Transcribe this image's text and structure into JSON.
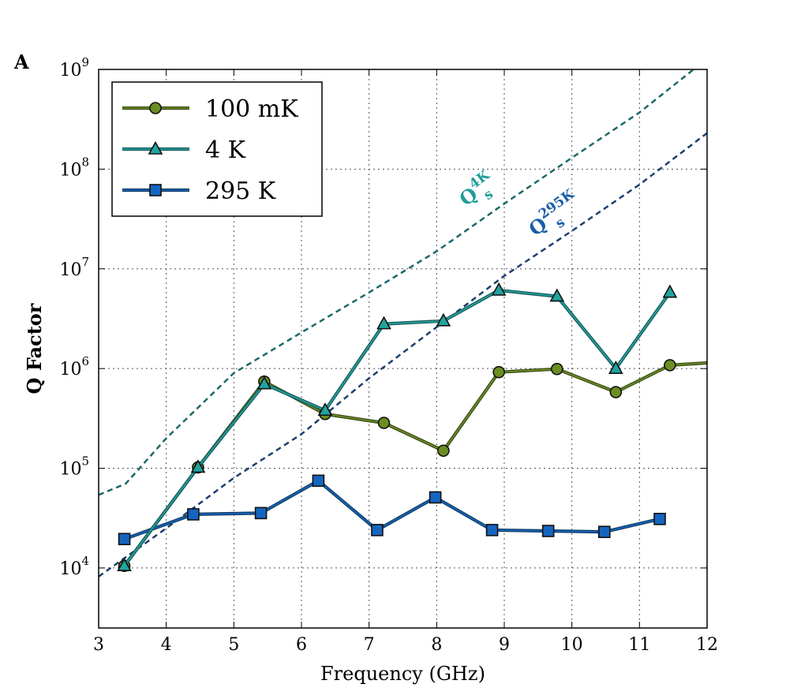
{
  "chart_data": {
    "type": "line",
    "panel_label": "A",
    "xlabel": "Frequency (GHz)",
    "ylabel": "Q Factor",
    "xlim": [
      3,
      12
    ],
    "ylim": [
      2500,
      1000000000
    ],
    "yscale": "log",
    "grid": true,
    "legend_placement": "top-left",
    "x_ticks": [
      3,
      4,
      5,
      6,
      7,
      8,
      9,
      10,
      11,
      12
    ],
    "y_ticks": [
      {
        "value": 10000,
        "base": "10",
        "exp": "4"
      },
      {
        "value": 100000,
        "base": "10",
        "exp": "5"
      },
      {
        "value": 1000000,
        "base": "10",
        "exp": "6"
      },
      {
        "value": 10000000,
        "base": "10",
        "exp": "7"
      },
      {
        "value": 100000000,
        "base": "10",
        "exp": "8"
      },
      {
        "value": 1000000000,
        "base": "10",
        "exp": "9"
      }
    ],
    "series": [
      {
        "name": "100 mK",
        "marker": "circle",
        "line_color": "#3d4f1a",
        "fill_color": "#6b8e23",
        "x": [
          3.38,
          4.47,
          5.45,
          6.35,
          7.22,
          8.1,
          8.92,
          9.78,
          10.65,
          11.45,
          12.0
        ],
        "y": [
          10500,
          102000,
          740000,
          350000,
          285000,
          150000,
          920000,
          990000,
          580000,
          1080000,
          1140000
        ]
      },
      {
        "name": "4 K",
        "marker": "triangle",
        "line_color": "#1b5c5c",
        "fill_color": "#20a4a0",
        "x": [
          3.38,
          4.47,
          5.45,
          6.35,
          7.22,
          8.1,
          8.92,
          9.78,
          10.65,
          11.45
        ],
        "y": [
          10500,
          102000,
          700000,
          380000,
          2800000,
          3000000,
          6100000,
          5300000,
          1000000,
          5800000
        ]
      },
      {
        "name": "295 K",
        "marker": "square",
        "line_color": "#123d66",
        "fill_color": "#1565c0",
        "x": [
          3.38,
          4.4,
          5.4,
          6.25,
          7.12,
          7.98,
          8.82,
          9.65,
          10.48,
          11.3
        ],
        "y": [
          19500,
          34500,
          35500,
          75000,
          24000,
          51000,
          24000,
          23500,
          23000,
          31000
        ]
      }
    ],
    "curves": [
      {
        "label": "Q",
        "sub": "s",
        "sup": "4K",
        "color": "#1f9e99",
        "line_color": "#1d6868",
        "x": [
          3.0,
          3.4,
          4.0,
          5.0,
          6.0,
          7.0,
          8.0,
          9.0,
          10.0,
          11.0,
          11.8
        ],
        "y": [
          54000,
          70000,
          200000,
          900000,
          2300000,
          5800000,
          15000000,
          45000000,
          130000000,
          370000000,
          1000000000
        ]
      },
      {
        "label": "Q",
        "sub": "s",
        "sup": "295K",
        "color": "#1a5ea8",
        "line_color": "#1d3f6e",
        "x": [
          3.0,
          4.0,
          5.0,
          6.0,
          7.0,
          8.0,
          9.0,
          10.0,
          11.0,
          12.0
        ],
        "y": [
          8200,
          25000,
          80000,
          220000,
          800000,
          2600000,
          8500000,
          24000000,
          70000000,
          230000000
        ]
      }
    ]
  }
}
